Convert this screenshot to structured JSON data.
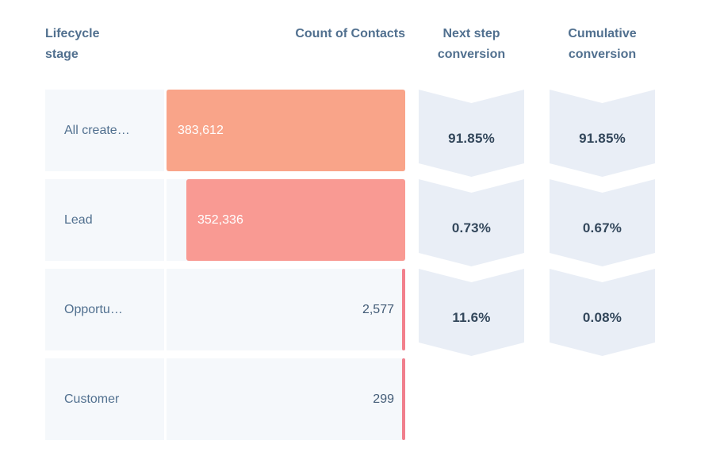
{
  "table": {
    "headers": {
      "lifecycle_line1": "Lifecycle",
      "lifecycle_line2": "stage",
      "count": "Count of Contacts",
      "next_step_line1": "Next step",
      "next_step_line2": "conversion",
      "cumulative_line1": "Cumulative",
      "cumulative_line2": "conversion"
    },
    "rows": [
      {
        "stage": "All create…",
        "count_display": "383,612",
        "next_step": "91.85%",
        "cumulative": "91.85%"
      },
      {
        "stage": "Lead",
        "count_display": "352,336",
        "next_step": "0.73%",
        "cumulative": "0.67%"
      },
      {
        "stage": "Opportu…",
        "count_display": "2,577",
        "next_step": "11.6%",
        "cumulative": "0.08%"
      },
      {
        "stage": "Customer",
        "count_display": "299",
        "next_step": "",
        "cumulative": ""
      }
    ]
  },
  "chart_data": {
    "type": "bar",
    "subtype": "funnel",
    "title": "",
    "categories": [
      "All create…",
      "Lead",
      "Opportu…",
      "Customer"
    ],
    "values": [
      383612,
      352336,
      2577,
      299
    ],
    "value_labels": [
      "383,612",
      "352,336",
      "2,577",
      "299"
    ],
    "series": [
      {
        "name": "Count of Contacts",
        "values": [
          383612,
          352336,
          2577,
          299
        ]
      },
      {
        "name": "Next step conversion",
        "values": [
          "91.85%",
          "0.73%",
          "11.6%",
          ""
        ]
      },
      {
        "name": "Cumulative conversion",
        "values": [
          "91.85%",
          "0.67%",
          "0.08%",
          ""
        ]
      }
    ],
    "bar_alignment": "right",
    "max_value": 383612,
    "bar_colors": [
      "#f9a489",
      "#f99a93",
      "#f2808c",
      "#f07f8d"
    ],
    "legend": "none",
    "grid": "off"
  },
  "colors": {
    "header_text": "#51708f",
    "label_text": "#51708f",
    "value_dark": "#425b76",
    "bar_value_text": "#ffffff",
    "row_background": "#f5f8fb",
    "chevron_background": "#e9eef6",
    "chevron_text": "#33475b",
    "background": "#ffffff"
  }
}
